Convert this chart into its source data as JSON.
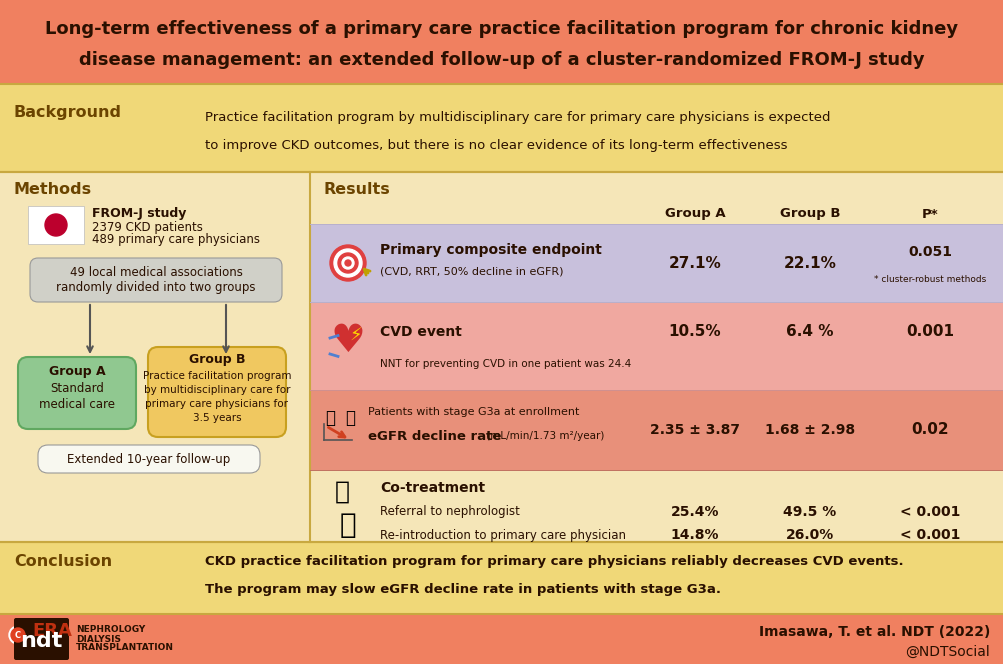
{
  "title_line1": "Long-term effectiveness of a primary care practice facilitation program for chronic kidney",
  "title_line2": "disease management: an extended follow-up of a cluster-randomized FROM-J study",
  "title_bg": "#F08060",
  "title_color": "#2a1000",
  "main_bg": "#F5E6B8",
  "background_section_bg": "#F0D878",
  "section_label_color": "#6B4400",
  "conclusion_bg": "#F0D878",
  "footer_bg": "#F08060",
  "row1_bg": "#C8C0DC",
  "row2_bg": "#F0A8A0",
  "row3_bg": "#E8907A",
  "row4_bg": "#F5E6B8",
  "group_a_bg": "#90C890",
  "group_b_bg": "#F0C860",
  "flowbox_bg": "#D0D0C8",
  "followup_bg": "#F8F8F0",
  "background_line1": "Practice facilitation program by multidisciplinary care for primary care physicians is expected",
  "background_line2": "to improve CKD outcomes, but there is no clear evidence of its long-term effectiveness",
  "row1_label_bold": "Primary composite endpoint",
  "row1_label_sub": "(CVD, RRT, 50% decline in eGFR)",
  "row1_a": "27.1%",
  "row1_b": "22.1%",
  "row1_p": "0.051",
  "row1_p_note": "* cluster-robust methods",
  "row2_label_bold": "CVD event",
  "row2_a": "10.5%",
  "row2_b": "6.4 %",
  "row2_p": "0.001",
  "row2_p_note": "NNT for preventing CVD in one patient was 24.4",
  "row3_label_pre": "Patients with stage G3a at enrollment",
  "row3_label_bold": "eGFR decline rate",
  "row3_label_unit": " (mL/min/1.73 m²/year)",
  "row3_a": "2.35 ± 3.87",
  "row3_b": "1.68 ± 2.98",
  "row3_p": "0.02",
  "row4_label_bold": "Co-treatment",
  "row4_label_sub1": "Referral to nephrologist",
  "row4_label_sub2": "Re-introduction to primary care physician",
  "row4_a1": "25.4%",
  "row4_b1": "49.5 %",
  "row4_p1": "< 0.001",
  "row4_a2": "14.8%",
  "row4_b2": "26.0%",
  "row4_p2": "< 0.001",
  "conclusion_line1": "CKD practice facilitation program for primary care physicians reliably decreases CVD events.",
  "conclusion_line2": "The program may slow eGFR decline rate in patients with stage G3a.",
  "citation": "Imasawa, T. et al. NDT (2022)",
  "twitter": "@NDTSocial"
}
